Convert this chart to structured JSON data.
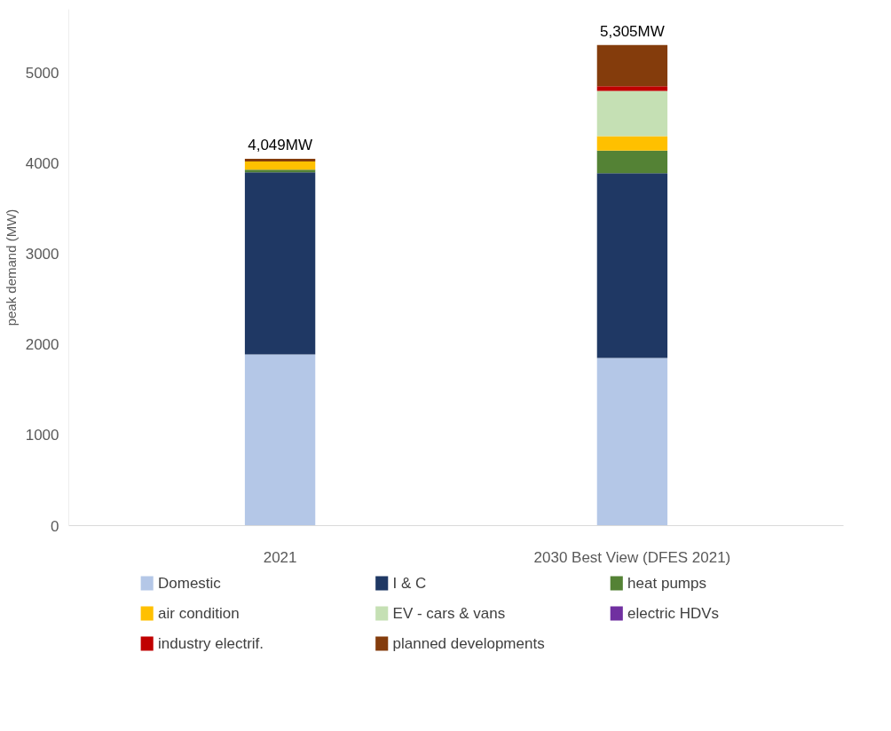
{
  "chart_data": {
    "type": "bar",
    "stacked": true,
    "ylabel": "peak demand (MW)",
    "categories": [
      "2021",
      "2030 Best View (DFES 2021)"
    ],
    "series": [
      {
        "name": "Domestic",
        "color": "#b4c7e7",
        "values": [
          1890,
          1850
        ]
      },
      {
        "name": "I & C",
        "color": "#1f3864",
        "values": [
          2010,
          2040
        ]
      },
      {
        "name": "heat pumps",
        "color": "#548235",
        "values": [
          30,
          250
        ]
      },
      {
        "name": "air condition",
        "color": "#ffc000",
        "values": [
          90,
          160
        ]
      },
      {
        "name": "EV - cars & vans",
        "color": "#c5e0b4",
        "values": [
          null,
          500
        ]
      },
      {
        "name": "electric HDVs",
        "color": "#7030a0",
        "values": [
          0,
          0
        ]
      },
      {
        "name": "industry electrif.",
        "color": "#c00000",
        "values": [
          0,
          50
        ]
      },
      {
        "name": "planned developments",
        "color": "#843c0c",
        "values": [
          29,
          455
        ]
      }
    ],
    "totals": [
      "4,049MW",
      "5,305MW"
    ],
    "ylim": [
      0,
      5700
    ],
    "yticks": [
      0,
      1000,
      2000,
      3000,
      4000,
      5000
    ],
    "grid": false,
    "legend": "bottom"
  }
}
